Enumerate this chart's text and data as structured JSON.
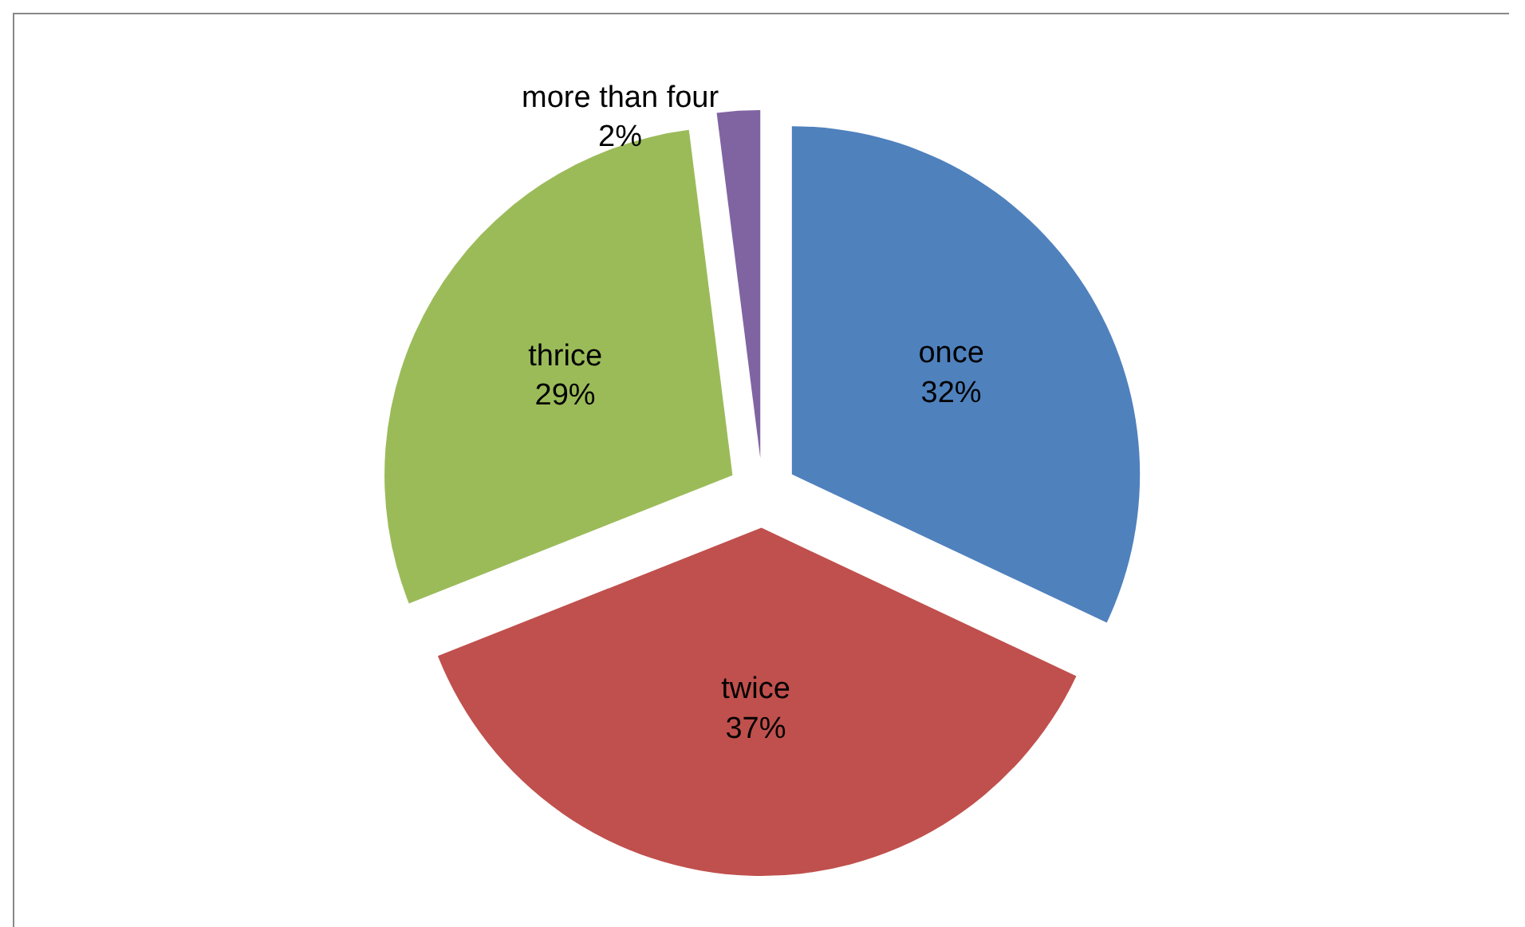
{
  "chart_data": {
    "type": "pie",
    "categories": [
      "once",
      "twice",
      "thrice",
      "more than four"
    ],
    "values": [
      32,
      37,
      29,
      2
    ],
    "colors": [
      "#4f81bd",
      "#c0504d",
      "#9bbb59",
      "#8064a2"
    ],
    "value_labels": [
      "32%",
      "37%",
      "29%",
      "2%"
    ]
  }
}
